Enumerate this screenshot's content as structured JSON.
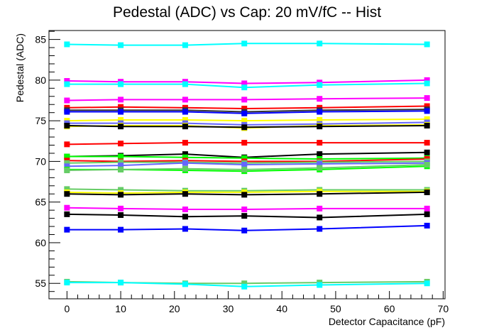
{
  "chart_data": {
    "type": "line",
    "title": "Pedestal (ADC) vs Cap: 20 mV/fC -- Hist",
    "xlabel": "Detector Capacitance (pF)",
    "ylabel": "Pedestal (ADC)",
    "xlim": [
      -3.35,
      70.35
    ],
    "ylim": [
      53.1,
      86.1
    ],
    "x_ticks": [
      0,
      10,
      20,
      30,
      40,
      50,
      60,
      70
    ],
    "y_ticks": [
      55,
      60,
      65,
      70,
      75,
      80,
      85
    ],
    "x_tick_labels": [
      "0",
      "10",
      "20",
      "30",
      "40",
      "50",
      "60",
      "70"
    ],
    "y_tick_labels": [
      "55",
      "60",
      "65",
      "70",
      "75",
      "80",
      "85"
    ],
    "grid": false,
    "legend": "none",
    "x": [
      0,
      10,
      22,
      33,
      47,
      67
    ],
    "series": [
      {
        "color": "#00ffff",
        "values": [
          84.4,
          84.3,
          84.3,
          84.5,
          84.5,
          84.4
        ]
      },
      {
        "color": "#ff00ff",
        "values": [
          79.9,
          79.8,
          79.8,
          79.6,
          79.7,
          80.0
        ]
      },
      {
        "color": "#00ffff",
        "values": [
          79.5,
          79.5,
          79.5,
          79.1,
          79.4,
          79.6
        ]
      },
      {
        "color": "#ff00ff",
        "values": [
          77.5,
          77.6,
          77.6,
          77.6,
          77.7,
          77.8
        ]
      },
      {
        "color": "#ff0000",
        "values": [
          76.6,
          76.7,
          76.6,
          76.5,
          76.6,
          76.8
        ]
      },
      {
        "color": "#333333",
        "values": [
          76.3,
          76.3,
          76.3,
          76.1,
          76.3,
          76.4
        ]
      },
      {
        "color": "#0000ff",
        "values": [
          76.1,
          76.1,
          76.1,
          75.9,
          76.1,
          76.2
        ]
      },
      {
        "color": "#ffff00",
        "values": [
          75.0,
          75.1,
          75.1,
          75.0,
          75.1,
          75.2
        ]
      },
      {
        "color": "#6666ff",
        "values": [
          74.7,
          74.7,
          74.7,
          74.5,
          74.6,
          74.8
        ]
      },
      {
        "color": "#ffff00",
        "values": [
          74.3,
          74.4,
          74.4,
          74.1,
          74.4,
          74.5
        ]
      },
      {
        "color": "#000000",
        "values": [
          74.4,
          74.3,
          74.3,
          74.2,
          74.3,
          74.4
        ]
      },
      {
        "color": "#ff0000",
        "values": [
          72.1,
          72.2,
          72.3,
          72.3,
          72.3,
          72.3
        ]
      },
      {
        "color": "#000000",
        "values": [
          70.6,
          70.7,
          70.9,
          70.5,
          70.9,
          71.1
        ]
      },
      {
        "color": "#00ff00",
        "values": [
          70.6,
          70.6,
          70.5,
          70.4,
          70.3,
          70.4
        ]
      },
      {
        "color": "#ff0000",
        "values": [
          70.1,
          70.0,
          70.1,
          70.0,
          70.0,
          70.3
        ]
      },
      {
        "color": "#66cc66",
        "values": [
          69.8,
          69.9,
          69.9,
          69.8,
          69.9,
          70.0
        ]
      },
      {
        "color": "#6666ff",
        "values": [
          69.4,
          69.5,
          69.8,
          69.6,
          69.7,
          69.8
        ]
      },
      {
        "color": "#00ff00",
        "values": [
          69.0,
          69.0,
          68.9,
          68.8,
          69.0,
          69.4
        ]
      },
      {
        "color": "#66cc66",
        "values": [
          68.9,
          69.0,
          69.1,
          69.0,
          69.2,
          69.6
        ]
      },
      {
        "color": "#66cc66",
        "values": [
          66.6,
          66.5,
          66.4,
          66.4,
          66.5,
          66.5
        ]
      },
      {
        "color": "#ffff00",
        "values": [
          66.2,
          66.1,
          66.2,
          66.2,
          66.3,
          66.3
        ]
      },
      {
        "color": "#000000",
        "values": [
          66.0,
          65.9,
          66.0,
          65.9,
          66.0,
          66.2
        ]
      },
      {
        "color": "#ff00ff",
        "values": [
          64.3,
          64.2,
          64.1,
          64.1,
          64.2,
          64.2
        ]
      },
      {
        "color": "#000000",
        "values": [
          63.5,
          63.4,
          63.2,
          63.3,
          63.1,
          63.5
        ]
      },
      {
        "color": "#0000ff",
        "values": [
          61.6,
          61.6,
          61.7,
          61.5,
          61.7,
          62.1
        ]
      },
      {
        "color": "#66cc66",
        "values": [
          55.2,
          55.1,
          55.0,
          55.0,
          55.1,
          55.2
        ]
      },
      {
        "color": "#00ffff",
        "values": [
          55.1,
          55.1,
          54.9,
          54.6,
          54.8,
          55.0
        ]
      }
    ]
  }
}
